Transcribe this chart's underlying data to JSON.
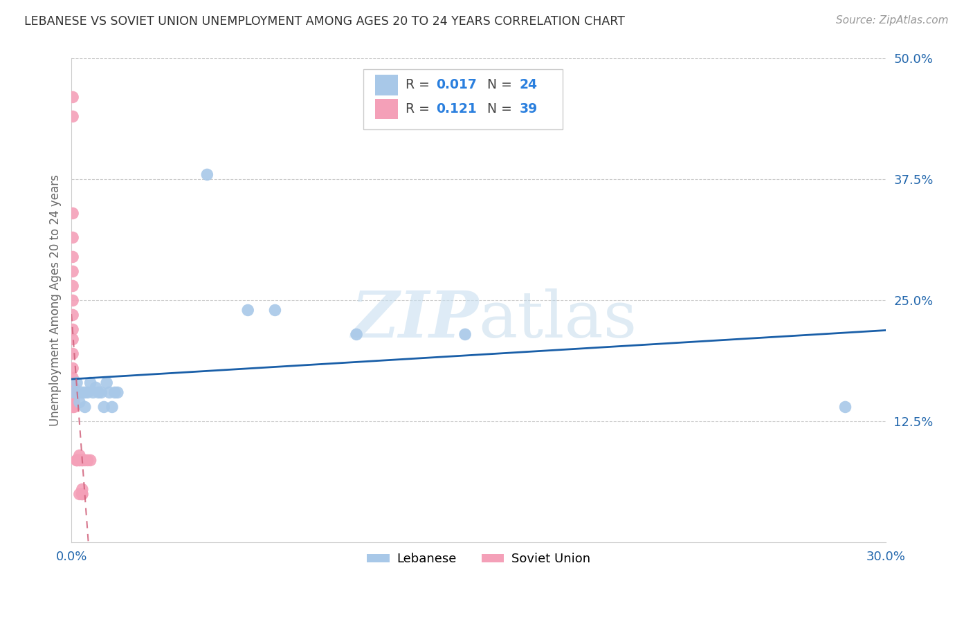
{
  "title": "LEBANESE VS SOVIET UNION UNEMPLOYMENT AMONG AGES 20 TO 24 YEARS CORRELATION CHART",
  "source": "Source: ZipAtlas.com",
  "ylabel": "Unemployment Among Ages 20 to 24 years",
  "xlim": [
    0.0,
    0.3
  ],
  "ylim": [
    0.0,
    0.5
  ],
  "ytick_labels": [
    "12.5%",
    "25.0%",
    "37.5%",
    "50.0%"
  ],
  "ytick_vals": [
    0.125,
    0.25,
    0.375,
    0.5
  ],
  "blue_color": "#a8c8e8",
  "pink_color": "#f4a0b8",
  "line_blue_color": "#1a5fa8",
  "line_pink_color": "#d0607a",
  "watermark_zip": "ZIP",
  "watermark_atlas": "atlas",
  "lebanese_x": [
    0.001,
    0.002,
    0.003,
    0.004,
    0.005,
    0.005,
    0.006,
    0.007,
    0.008,
    0.009,
    0.01,
    0.011,
    0.012,
    0.013,
    0.014,
    0.015,
    0.016,
    0.017,
    0.05,
    0.065,
    0.075,
    0.105,
    0.145,
    0.285
  ],
  "lebanese_y": [
    0.155,
    0.165,
    0.145,
    0.155,
    0.155,
    0.14,
    0.155,
    0.165,
    0.155,
    0.16,
    0.155,
    0.155,
    0.14,
    0.165,
    0.155,
    0.14,
    0.155,
    0.155,
    0.38,
    0.24,
    0.24,
    0.215,
    0.215,
    0.14
  ],
  "soviet_x": [
    0.0005,
    0.0005,
    0.0005,
    0.0005,
    0.0005,
    0.0005,
    0.0005,
    0.0005,
    0.0005,
    0.0005,
    0.0005,
    0.0005,
    0.0005,
    0.0005,
    0.0005,
    0.0005,
    0.0005,
    0.001,
    0.001,
    0.001,
    0.001,
    0.001,
    0.001,
    0.001,
    0.002,
    0.002,
    0.002,
    0.003,
    0.003,
    0.003,
    0.003,
    0.004,
    0.004,
    0.004,
    0.004,
    0.004,
    0.005,
    0.006,
    0.007
  ],
  "soviet_y": [
    0.46,
    0.44,
    0.34,
    0.315,
    0.295,
    0.28,
    0.265,
    0.25,
    0.235,
    0.22,
    0.21,
    0.195,
    0.18,
    0.17,
    0.16,
    0.15,
    0.14,
    0.14,
    0.145,
    0.15,
    0.155,
    0.155,
    0.16,
    0.155,
    0.085,
    0.085,
    0.085,
    0.085,
    0.085,
    0.09,
    0.05,
    0.05,
    0.05,
    0.055,
    0.085,
    0.085,
    0.085,
    0.085,
    0.085
  ]
}
